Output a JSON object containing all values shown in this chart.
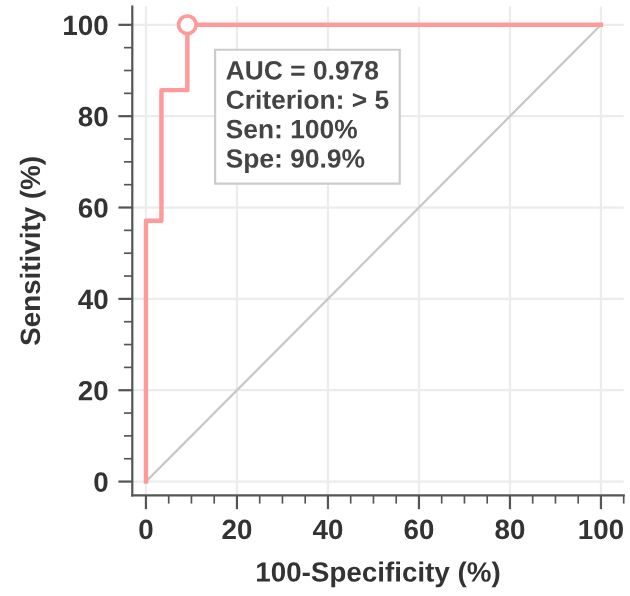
{
  "chart_data": {
    "type": "step",
    "xlabel": "100-Specificity (%)",
    "ylabel": "Sensitivity (%)",
    "series": [
      {
        "color": "#ff9a9a",
        "x": [
          0,
          0,
          3.4,
          3.4,
          9.1,
          9.1,
          100
        ],
        "values": [
          0,
          57.1,
          57.1,
          85.7,
          85.7,
          100,
          100
        ],
        "marker": "none"
      },
      {
        "type": "line",
        "color": "#c8c8c8",
        "x": [
          0,
          100
        ],
        "values": [
          0,
          100
        ],
        "marker": "none"
      },
      {
        "type": "scatter",
        "color": "#ff9a9a",
        "x": [
          9.1
        ],
        "values": [
          100
        ],
        "marker": "circle"
      }
    ],
    "annotations": [
      "AUC = 0.978",
      "Criterion: > 5",
      "Sen: 100%",
      "Spe: 90.9%"
    ],
    "xlim": [
      -3,
      105
    ],
    "ylim": [
      -3,
      104
    ],
    "xticks": [
      0,
      20,
      40,
      60,
      80,
      100
    ],
    "yticks": [
      0,
      20,
      40,
      60,
      80,
      100
    ],
    "grid": true
  }
}
